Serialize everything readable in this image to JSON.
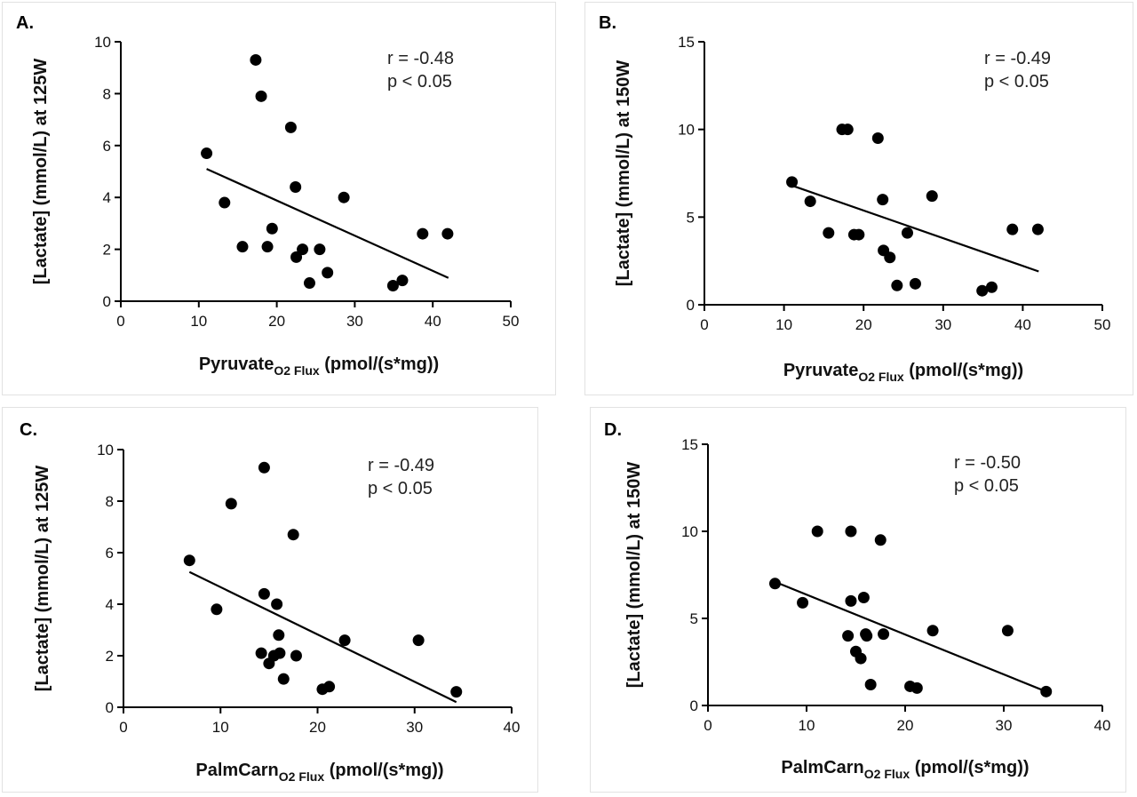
{
  "chart_data": [
    {
      "type": "scatter",
      "panel_label": "A.",
      "xlabel_main": "Pyruvate",
      "xlabel_sub": "O2 Flux",
      "xlabel_unit": " (pmol/(s*mg))",
      "ylabel": "[Lactate] (mmol/L) at 125W",
      "xlim": [
        0,
        50
      ],
      "ylim": [
        0,
        10
      ],
      "xticks": [
        0,
        10,
        20,
        30,
        40,
        50
      ],
      "yticks": [
        0,
        2,
        4,
        6,
        8,
        10
      ],
      "annotation": [
        "r = -0.48",
        "p < 0.05"
      ],
      "points": [
        [
          11,
          5.7
        ],
        [
          13.3,
          3.8
        ],
        [
          15.6,
          2.1
        ],
        [
          17.3,
          9.3
        ],
        [
          18,
          7.9
        ],
        [
          18.8,
          2.1
        ],
        [
          19.4,
          2.8
        ],
        [
          21.8,
          6.7
        ],
        [
          22.4,
          4.4
        ],
        [
          22.5,
          1.7
        ],
        [
          23.3,
          2.0
        ],
        [
          24.2,
          0.7
        ],
        [
          25.5,
          2.0
        ],
        [
          26.5,
          1.1
        ],
        [
          28.6,
          4.0
        ],
        [
          34.9,
          0.6
        ],
        [
          36.1,
          0.8
        ],
        [
          38.7,
          2.6
        ],
        [
          41.9,
          2.6
        ]
      ],
      "fit_line": [
        [
          11,
          5.1
        ],
        [
          42,
          0.9
        ]
      ],
      "grid": false,
      "legend": "none"
    },
    {
      "type": "scatter",
      "panel_label": "B.",
      "xlabel_main": "Pyruvate",
      "xlabel_sub": "O2 Flux",
      "xlabel_unit": " (pmol/(s*mg))",
      "ylabel": "[Lactate] (mmol/L) at 150W",
      "xlim": [
        0,
        50
      ],
      "ylim": [
        0,
        15
      ],
      "xticks": [
        0,
        10,
        20,
        30,
        40,
        50
      ],
      "yticks": [
        0,
        5,
        10,
        15
      ],
      "annotation": [
        "r = -0.49",
        "p < 0.05"
      ],
      "points": [
        [
          11,
          7.0
        ],
        [
          13.3,
          5.9
        ],
        [
          15.6,
          4.1
        ],
        [
          17.3,
          10.0
        ],
        [
          18,
          10.0
        ],
        [
          18.8,
          4.0
        ],
        [
          19.4,
          4.0
        ],
        [
          21.8,
          9.5
        ],
        [
          22.4,
          6.0
        ],
        [
          22.5,
          3.1
        ],
        [
          23.3,
          2.7
        ],
        [
          24.2,
          1.1
        ],
        [
          25.5,
          4.1
        ],
        [
          26.5,
          1.2
        ],
        [
          28.6,
          6.2
        ],
        [
          34.9,
          0.8
        ],
        [
          36.1,
          1.0
        ],
        [
          38.7,
          4.3
        ],
        [
          41.9,
          4.3
        ]
      ],
      "fit_line": [
        [
          11,
          6.8
        ],
        [
          42,
          1.9
        ]
      ],
      "grid": false,
      "legend": "none"
    },
    {
      "type": "scatter",
      "panel_label": "C.",
      "xlabel_main": "PalmCarn",
      "xlabel_sub": "O2 Flux",
      "xlabel_unit": " (pmol/(s*mg))",
      "ylabel": "[Lactate] (mmol/L) at 125W",
      "xlim": [
        0,
        40
      ],
      "ylim": [
        0,
        10
      ],
      "xticks": [
        0,
        10,
        20,
        30,
        40
      ],
      "yticks": [
        0,
        2,
        4,
        6,
        8,
        10
      ],
      "annotation": [
        "r = -0.49",
        "p < 0.05"
      ],
      "points": [
        [
          6.8,
          5.7
        ],
        [
          9.6,
          3.8
        ],
        [
          11.1,
          7.9
        ],
        [
          14.2,
          2.1
        ],
        [
          14.5,
          9.3
        ],
        [
          14.5,
          4.4
        ],
        [
          15.0,
          1.7
        ],
        [
          15.5,
          2.0
        ],
        [
          15.8,
          4.0
        ],
        [
          16.0,
          2.8
        ],
        [
          16.1,
          2.1
        ],
        [
          16.5,
          1.1
        ],
        [
          17.5,
          6.7
        ],
        [
          17.8,
          2.0
        ],
        [
          20.5,
          0.7
        ],
        [
          21.2,
          0.8
        ],
        [
          22.8,
          2.6
        ],
        [
          30.4,
          2.6
        ],
        [
          34.3,
          0.6
        ]
      ],
      "fit_line": [
        [
          6.8,
          5.25
        ],
        [
          34.3,
          0.2
        ]
      ],
      "grid": false,
      "legend": "none"
    },
    {
      "type": "scatter",
      "panel_label": "D.",
      "xlabel_main": "PalmCarn",
      "xlabel_sub": "O2 Flux",
      "xlabel_unit": " (pmol/(s*mg))",
      "ylabel": "[Lactate] (mmol/L) at 150W",
      "xlim": [
        0,
        40
      ],
      "ylim": [
        0,
        15
      ],
      "xticks": [
        0,
        10,
        20,
        30,
        40
      ],
      "yticks": [
        0,
        5,
        10,
        15
      ],
      "annotation": [
        "r = -0.50",
        "p < 0.05"
      ],
      "points": [
        [
          6.8,
          7.0
        ],
        [
          9.6,
          5.9
        ],
        [
          11.1,
          10.0
        ],
        [
          14.2,
          4.0
        ],
        [
          14.5,
          10.0
        ],
        [
          14.5,
          6.0
        ],
        [
          15.0,
          3.1
        ],
        [
          15.5,
          2.7
        ],
        [
          15.8,
          6.2
        ],
        [
          16.0,
          4.1
        ],
        [
          16.1,
          4.0
        ],
        [
          16.5,
          1.2
        ],
        [
          17.5,
          9.5
        ],
        [
          17.8,
          4.1
        ],
        [
          20.5,
          1.1
        ],
        [
          21.2,
          1.0
        ],
        [
          22.8,
          4.3
        ],
        [
          30.4,
          4.3
        ],
        [
          34.3,
          0.8
        ]
      ],
      "fit_line": [
        [
          6.8,
          7.1
        ],
        [
          34.3,
          0.8
        ]
      ],
      "grid": false,
      "legend": "none"
    }
  ]
}
